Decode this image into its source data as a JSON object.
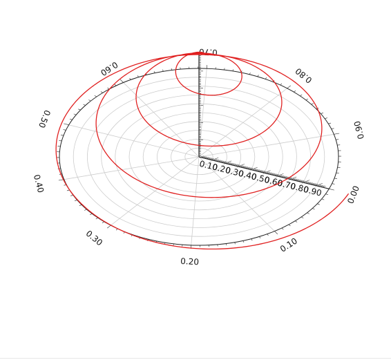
{
  "chart_data": {
    "type": "line",
    "projection": "3d-polar",
    "title": "",
    "angular_ticks": [
      {
        "theta": 0.0,
        "label": "0.00"
      },
      {
        "theta": 0.1,
        "label": "0.10"
      },
      {
        "theta": 0.2,
        "label": "0.20"
      },
      {
        "theta": 0.3,
        "label": "0.30"
      },
      {
        "theta": 0.4,
        "label": "0.40"
      },
      {
        "theta": 0.5,
        "label": "0.50"
      },
      {
        "theta": 0.6,
        "label": "0.60"
      },
      {
        "theta": 0.7,
        "label": "0.70"
      },
      {
        "theta": 0.8,
        "label": "0.80"
      },
      {
        "theta": 0.9,
        "label": "0.90"
      }
    ],
    "radial_ticks": [
      "0.10",
      "0.20",
      "0.30",
      "0.40",
      "0.50",
      "0.60",
      "0.70",
      "0.80",
      "0.90"
    ],
    "radial_range": [
      0,
      1
    ],
    "angular_range": [
      0,
      1
    ],
    "grid": true,
    "series": [
      {
        "color": "#e02020",
        "shape": "conical-spiral",
        "turns": 4,
        "r_range": [
          0.0,
          1.15
        ],
        "z_range": [
          1.55,
          0.0
        ]
      }
    ],
    "colors": {
      "spiral": "#e02020",
      "axes": "#222222",
      "grid": "#cccccc"
    }
  }
}
